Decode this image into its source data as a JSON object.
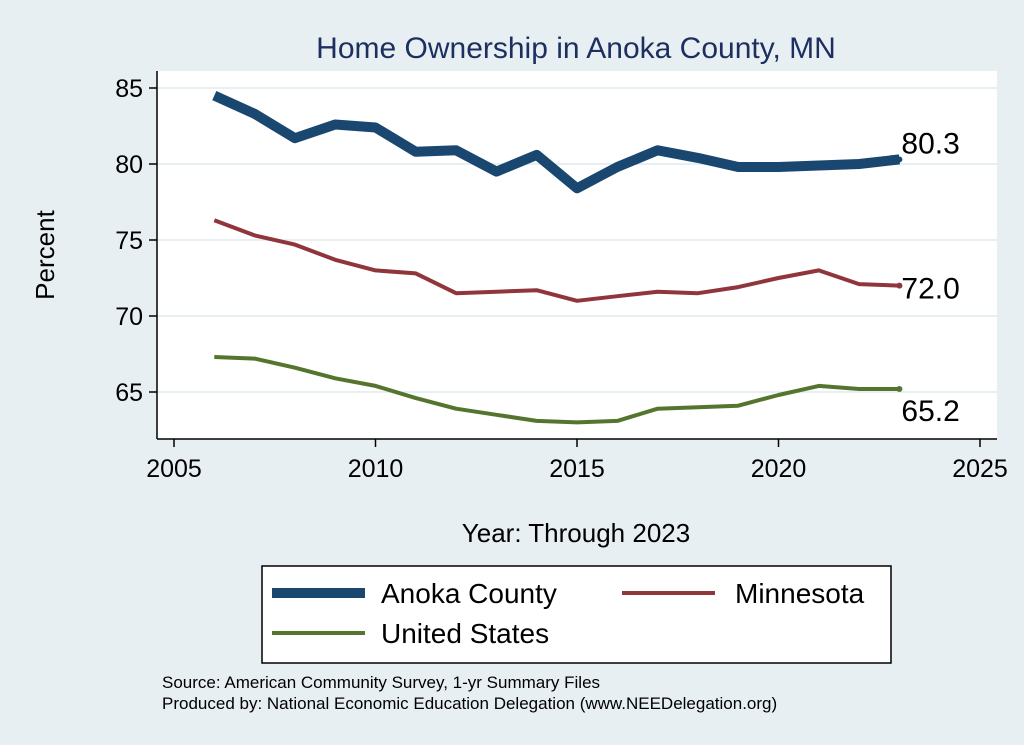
{
  "chart_data": {
    "type": "line",
    "title": "Home Ownership in Anoka County, MN",
    "xlabel": "Year: Through 2023",
    "ylabel": "Percent",
    "xlim": [
      2005,
      2025
    ],
    "ylim": [
      62.2,
      85.2
    ],
    "xticks": [
      2005,
      2010,
      2015,
      2020,
      2025
    ],
    "yticks": [
      65,
      70,
      75,
      80,
      85
    ],
    "grid": true,
    "legend_position": "bottom",
    "series": [
      {
        "name": "Anoka County",
        "color": "#1a476f",
        "x": [
          2006,
          2007,
          2008,
          2009,
          2010,
          2011,
          2012,
          2013,
          2014,
          2015,
          2016,
          2017,
          2018,
          2019,
          2020,
          2021,
          2022,
          2023
        ],
        "values": [
          84.5,
          83.3,
          81.7,
          82.6,
          82.4,
          80.8,
          80.9,
          79.5,
          80.6,
          78.4,
          79.8,
          80.9,
          80.4,
          79.8,
          79.8,
          79.9,
          80.0,
          80.3
        ],
        "end_label": "80.3"
      },
      {
        "name": "Minnesota",
        "color": "#90353b",
        "x": [
          2006,
          2007,
          2008,
          2009,
          2010,
          2011,
          2012,
          2013,
          2014,
          2015,
          2016,
          2017,
          2018,
          2019,
          2020,
          2021,
          2022,
          2023
        ],
        "values": [
          76.3,
          75.3,
          74.7,
          73.7,
          73.0,
          72.8,
          71.5,
          71.6,
          71.7,
          71.0,
          71.3,
          71.6,
          71.5,
          71.9,
          72.5,
          73.0,
          72.1,
          72.0
        ],
        "end_label": "72.0"
      },
      {
        "name": "United States",
        "color": "#55752f",
        "x": [
          2006,
          2007,
          2008,
          2009,
          2010,
          2011,
          2012,
          2013,
          2014,
          2015,
          2016,
          2017,
          2018,
          2019,
          2020,
          2021,
          2022,
          2023
        ],
        "values": [
          67.3,
          67.2,
          66.6,
          65.9,
          65.4,
          64.6,
          63.9,
          63.5,
          63.1,
          63.0,
          63.1,
          63.9,
          64.0,
          64.1,
          64.8,
          65.4,
          65.2,
          65.2
        ],
        "end_label": "65.2"
      }
    ]
  },
  "footer": {
    "source": "Source: American Community Survey, 1-yr Summary Files",
    "produced_by": "Produced by: National Economic Education Delegation (www.NEEDelegation.org)"
  }
}
